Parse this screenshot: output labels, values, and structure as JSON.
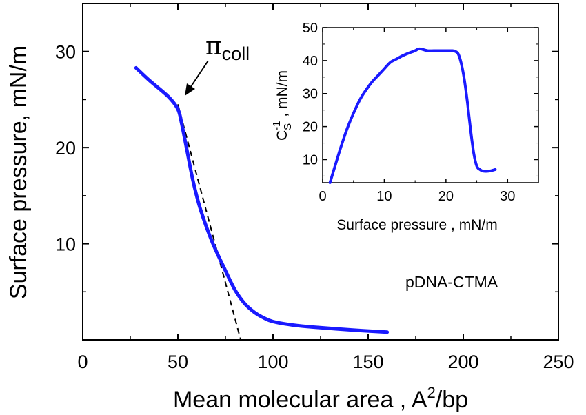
{
  "chart_data": [
    {
      "type": "line",
      "title": "",
      "xlabel_main": "Mean molecular area , A",
      "xlabel_sup": "2",
      "xlabel_tail": "/bp",
      "ylabel": "Surface pressure, mN/m",
      "xlim": [
        0,
        250
      ],
      "ylim": [
        0,
        35
      ],
      "xticks": [
        0,
        50,
        100,
        150,
        200,
        250
      ],
      "yticks": [
        10,
        20,
        30
      ],
      "grid": false,
      "annotation_pi": "π",
      "annotation_sub": "coll",
      "annotation_sample": "pDNA-CTMA",
      "series": [
        {
          "color": "#1a1aff",
          "x": [
            28,
            35,
            45,
            50,
            52,
            55,
            58,
            62,
            68,
            75,
            80,
            85,
            90,
            95,
            100,
            110,
            120,
            140,
            160
          ],
          "y": [
            28.3,
            27.0,
            25.3,
            24.0,
            22.5,
            19.5,
            16.5,
            13.5,
            10.2,
            7.2,
            5.2,
            3.8,
            2.9,
            2.3,
            1.9,
            1.55,
            1.35,
            1.05,
            0.8
          ]
        }
      ],
      "fit_line": {
        "style": "dashed",
        "x": [
          50,
          83
        ],
        "y": [
          24.5,
          0
        ]
      }
    },
    {
      "type": "line",
      "title": "",
      "xlabel": "Surface pressure , mN/m",
      "ylabel_main": "C",
      "ylabel_sub": "S",
      "ylabel_sup": "-1",
      "ylabel_tail": " , mN/m",
      "xlim": [
        0,
        35
      ],
      "ylim": [
        3,
        50
      ],
      "xticks": [
        0,
        10,
        20,
        30
      ],
      "yticks": [
        10,
        20,
        30,
        40,
        50
      ],
      "grid": false,
      "series": [
        {
          "color": "#1a1aff",
          "x": [
            1.2,
            2,
            3,
            4,
            5,
            6,
            7,
            8,
            9,
            10,
            11,
            12,
            13,
            14,
            15,
            15.5,
            16,
            17,
            18,
            19,
            20,
            21,
            21.5,
            22,
            22.5,
            23,
            23.5,
            24,
            24.5,
            25,
            25.5,
            26,
            27,
            28
          ],
          "y": [
            3,
            8,
            14,
            19.5,
            24,
            28,
            31,
            33.5,
            35.5,
            37.5,
            39.5,
            40.5,
            41.5,
            42.3,
            43,
            43.5,
            43.5,
            43,
            43,
            43,
            43,
            43,
            42.8,
            42,
            39,
            34,
            27,
            19,
            12,
            8,
            7,
            6.5,
            6.5,
            7
          ]
        }
      ]
    }
  ]
}
